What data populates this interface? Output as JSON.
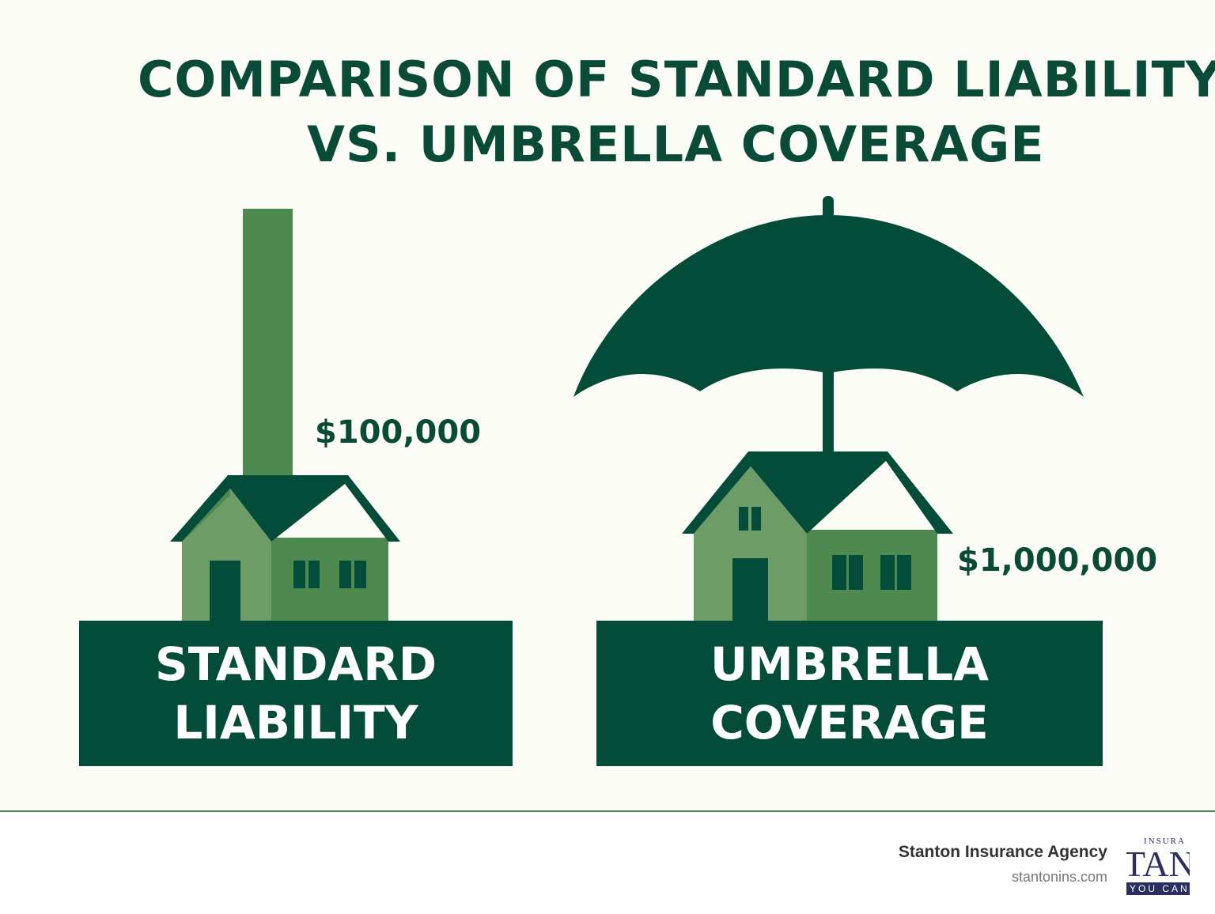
{
  "title": {
    "line1": "COMPARISON OF STANDARD LIABILITY",
    "line2": "VS. UMBRELLA COVERAGE"
  },
  "standard": {
    "label_line1": "STANDARD",
    "label_line2": "LIABILITY",
    "amount": "$100,000"
  },
  "umbrella": {
    "label_line1": "UMBRELLA",
    "label_line2": "COVERAGE",
    "amount": "$1,000,000"
  },
  "footer": {
    "agency": "Stanton Insurance Agency",
    "website": "stantonins.com",
    "logo": {
      "top": "INSURA",
      "main": "TAN",
      "tagline": "YOU CAN"
    }
  },
  "colors": {
    "dark_green": "#044c3a",
    "mid_green": "#4e8a50",
    "light_green": "#6e9c66",
    "background": "#fcfcf7"
  }
}
